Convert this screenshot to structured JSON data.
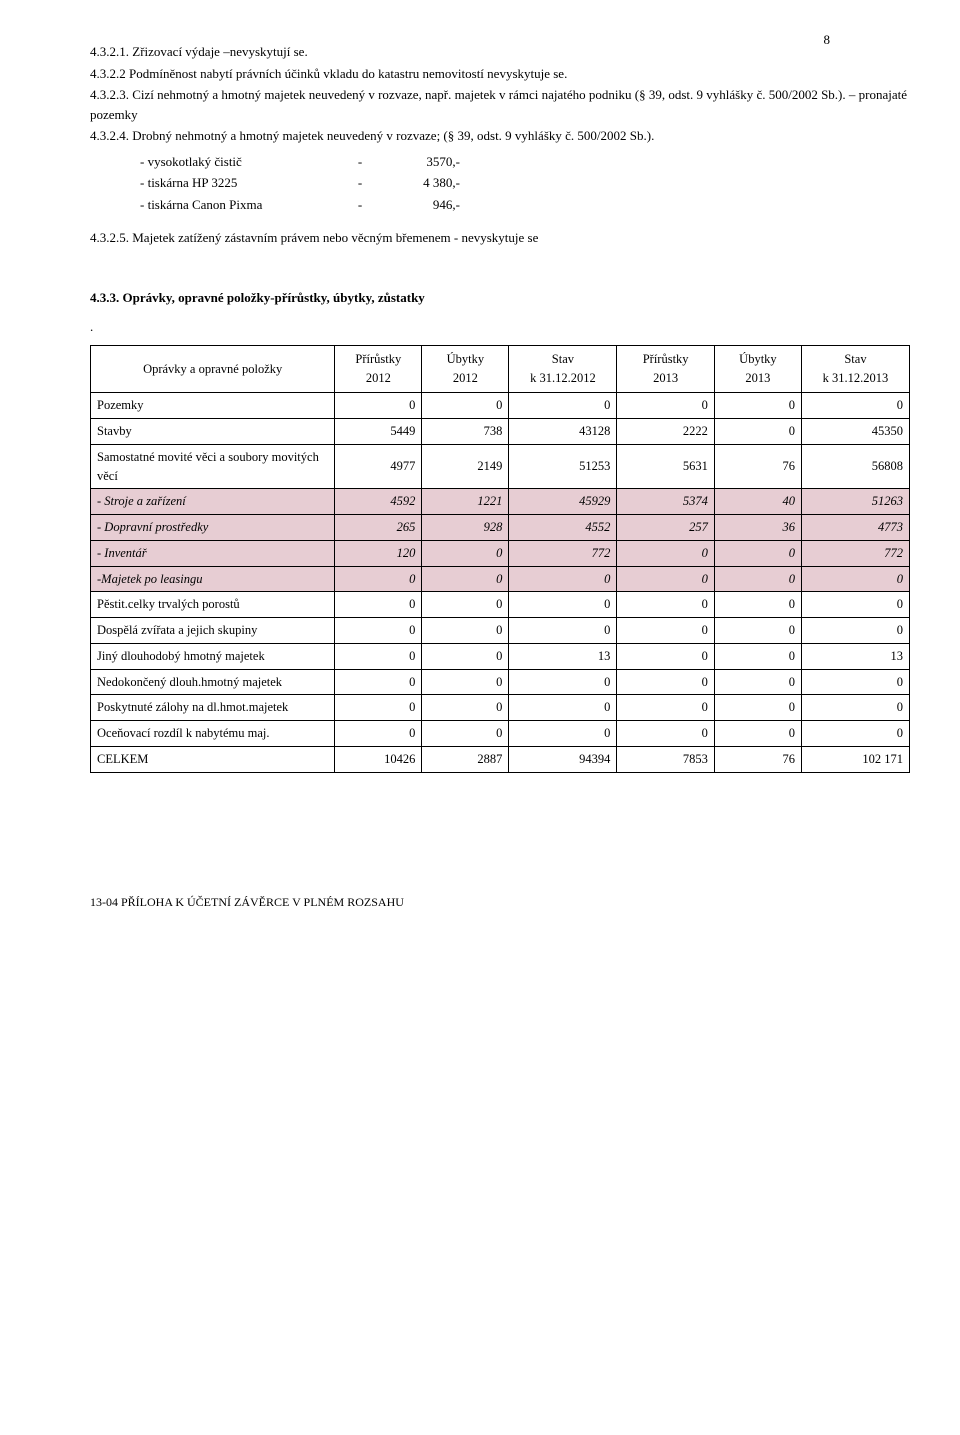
{
  "pageNumber": "8",
  "paras": {
    "p1": "4.3.2.1.  Zřizovací výdaje –nevyskytují se.",
    "p2": "4.3.2.2  Podmíněnost nabytí právních účinků vkladu do katastru nemovitostí nevyskytuje se.",
    "p3": "4.3.2.3.  Cizí nehmotný a hmotný majetek neuvedený v rozvaze, např. majetek v rámci najatého podniku (§ 39, odst. 9 vyhlášky č. 500/2002 Sb.). – pronajaté pozemky",
    "p4": "4.3.2.4.  Drobný nehmotný a hmotný majetek neuvedený v rozvaze; (§ 39, odst. 9 vyhlášky č. 500/2002 Sb.).",
    "p5": "4.3.2.5.   Majetek zatížený zástavním právem nebo věcným břemenem -  nevyskytuje se"
  },
  "listItems": [
    {
      "label": "- vysokotlaký čistič",
      "dash": "-",
      "val": "3570,-"
    },
    {
      "label": "- tiskárna HP 3225",
      "dash": "-",
      "val": "4 380,-"
    },
    {
      "label": "- tiskárna Canon Pixma",
      "dash": "-",
      "val": "946,-"
    }
  ],
  "sectionTitle": "4.3.3.  Oprávky, opravné položky-přírůstky, úbytky, zůstatky",
  "dot": ".",
  "table": {
    "headerLabel": "Oprávky a opravné položky",
    "cols": [
      "Přírůstky 2012",
      "Úbytky 2012",
      "Stav k 31.12.2012",
      "Přírůstky 2013",
      "Úbytky 2013",
      "Stav k 31.12.2013"
    ],
    "colWidths": [
      "220px",
      "70px",
      "70px",
      "90px",
      "80px",
      "70px",
      "90px"
    ],
    "header_bg": "#ffffff",
    "highlight_bg": "#e7cdd3",
    "border_color": "#000000",
    "rows": [
      {
        "label": "Pozemky",
        "vals": [
          "0",
          "0",
          "0",
          "0",
          "0",
          "0"
        ],
        "hl": false
      },
      {
        "label": "Stavby",
        "vals": [
          "5449",
          "738",
          "43128",
          "2222",
          "0",
          "45350"
        ],
        "hl": false
      },
      {
        "label": "Samostatné movité věci a soubory movitých věcí",
        "vals": [
          "4977",
          "2149",
          "51253",
          "5631",
          "76",
          "56808"
        ],
        "hl": false
      },
      {
        "label": "- Stroje a zařízení",
        "vals": [
          "4592",
          "1221",
          "45929",
          "5374",
          "40",
          "51263"
        ],
        "hl": true
      },
      {
        "label": "- Dopravní prostředky",
        "vals": [
          "265",
          "928",
          "4552",
          "257",
          "36",
          "4773"
        ],
        "hl": true
      },
      {
        "label": "- Inventář",
        "vals": [
          "120",
          "0",
          "772",
          "0",
          "0",
          "772"
        ],
        "hl": true
      },
      {
        "label": "-Majetek po leasingu",
        "vals": [
          "0",
          "0",
          "0",
          "0",
          "0",
          "0"
        ],
        "hl": true
      },
      {
        "label": "Pěstit.celky trvalých porostů",
        "vals": [
          "0",
          "0",
          "0",
          "0",
          "0",
          "0"
        ],
        "hl": false
      },
      {
        "label": "Dospělá zvířata a jejich skupiny",
        "vals": [
          "0",
          "0",
          "0",
          "0",
          "0",
          "0"
        ],
        "hl": false
      },
      {
        "label": "Jiný dlouhodobý hmotný majetek",
        "vals": [
          "0",
          "0",
          "13",
          "0",
          "0",
          "13"
        ],
        "hl": false
      },
      {
        "label": "Nedokončený dlouh.hmotný majetek",
        "vals": [
          "0",
          "0",
          "0",
          "0",
          "0",
          "0"
        ],
        "hl": false
      },
      {
        "label": "Poskytnuté zálohy na dl.hmot.majetek",
        "vals": [
          "0",
          "0",
          "0",
          "0",
          "0",
          "0"
        ],
        "hl": false
      },
      {
        "label": "Oceňovací rozdíl k nabytému maj.",
        "vals": [
          "0",
          "0",
          "0",
          "0",
          "0",
          "0"
        ],
        "hl": false
      },
      {
        "label": "CELKEM",
        "vals": [
          "10426",
          "2887",
          "94394",
          "7853",
          "76",
          "102 171"
        ],
        "hl": false
      }
    ]
  },
  "footer": "13-04  PŘÍLOHA K ÚČETNÍ ZÁVĚRCE V PLNÉM ROZSAHU"
}
